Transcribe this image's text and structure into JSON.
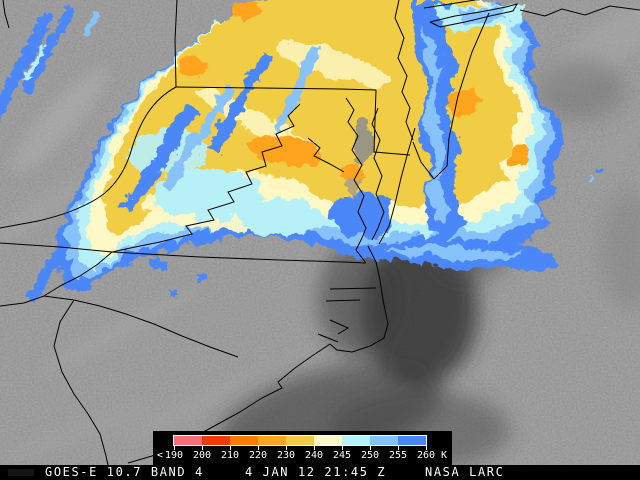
{
  "caption": {
    "instrument": "GOES-E 10.7 BAND 4",
    "datetime": "4 JAN 12 21:45 Z",
    "credit": "NASA LARC"
  },
  "colorbar": {
    "lt_symbol": "<",
    "unit": "K",
    "ticks": [
      "190",
      "200",
      "210",
      "220",
      "230",
      "240",
      "245",
      "250",
      "255",
      "260"
    ],
    "segments": [
      {
        "min": 190,
        "max": 200,
        "color": "#fa6e78",
        "name": "pink"
      },
      {
        "min": 200,
        "max": 210,
        "color": "#ef3b00",
        "name": "red-orange"
      },
      {
        "min": 210,
        "max": 220,
        "color": "#fe7b00",
        "name": "orange"
      },
      {
        "min": 220,
        "max": 230,
        "color": "#ffa41e",
        "name": "amber"
      },
      {
        "min": 230,
        "max": 240,
        "color": "#f0cd45",
        "name": "gold"
      },
      {
        "min": 240,
        "max": 245,
        "color": "#fdf8c5",
        "name": "cream"
      },
      {
        "min": 245,
        "max": 250,
        "color": "#b8f0f8",
        "name": "cyan"
      },
      {
        "min": 250,
        "max": 255,
        "color": "#88c2fa",
        "name": "light-blue"
      },
      {
        "min": 255,
        "max": 260,
        "color": "#4b87f8",
        "name": "blue"
      }
    ]
  },
  "map": {
    "description_colors": {
      "background_gray": "#8f8f8f",
      "dark_warm_region": "#2e2e2e",
      "border_line": "#000000"
    }
  }
}
